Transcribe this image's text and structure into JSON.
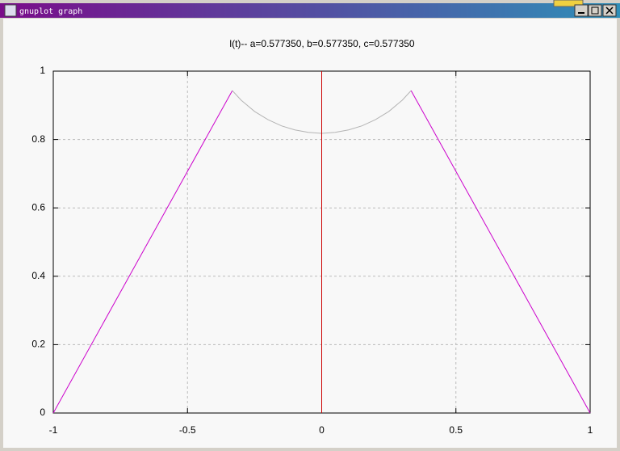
{
  "window": {
    "title": "gnuplot graph"
  },
  "chart_data": {
    "type": "line",
    "title": "l(t)-- a=0.577350, b=0.577350, c=0.577350",
    "xlim": [
      -1,
      1
    ],
    "ylim": [
      0,
      1
    ],
    "xticks": [
      -1,
      -0.5,
      0,
      0.5,
      1
    ],
    "yticks": [
      0,
      0.2,
      0.4,
      0.6,
      0.8,
      1
    ],
    "grid": true,
    "series": [
      {
        "color": "#cc00cc",
        "x": [
          -1,
          -0.333
        ],
        "values": [
          0,
          0.943
        ]
      },
      {
        "color": "#b4b4b4",
        "x": [
          -0.333,
          -0.3,
          -0.25,
          -0.2,
          -0.15,
          -0.1,
          -0.05,
          0,
          0.05,
          0.1,
          0.15,
          0.2,
          0.25,
          0.3,
          0.333
        ],
        "values": [
          0.943,
          0.915,
          0.882,
          0.858,
          0.84,
          0.828,
          0.821,
          0.818,
          0.821,
          0.828,
          0.84,
          0.858,
          0.882,
          0.915,
          0.943
        ]
      },
      {
        "color": "#cc0000",
        "x": [
          0,
          0
        ],
        "values": [
          0,
          1
        ]
      },
      {
        "color": "#cc00cc",
        "x": [
          0.333,
          1
        ],
        "values": [
          0.943,
          0
        ]
      }
    ]
  }
}
